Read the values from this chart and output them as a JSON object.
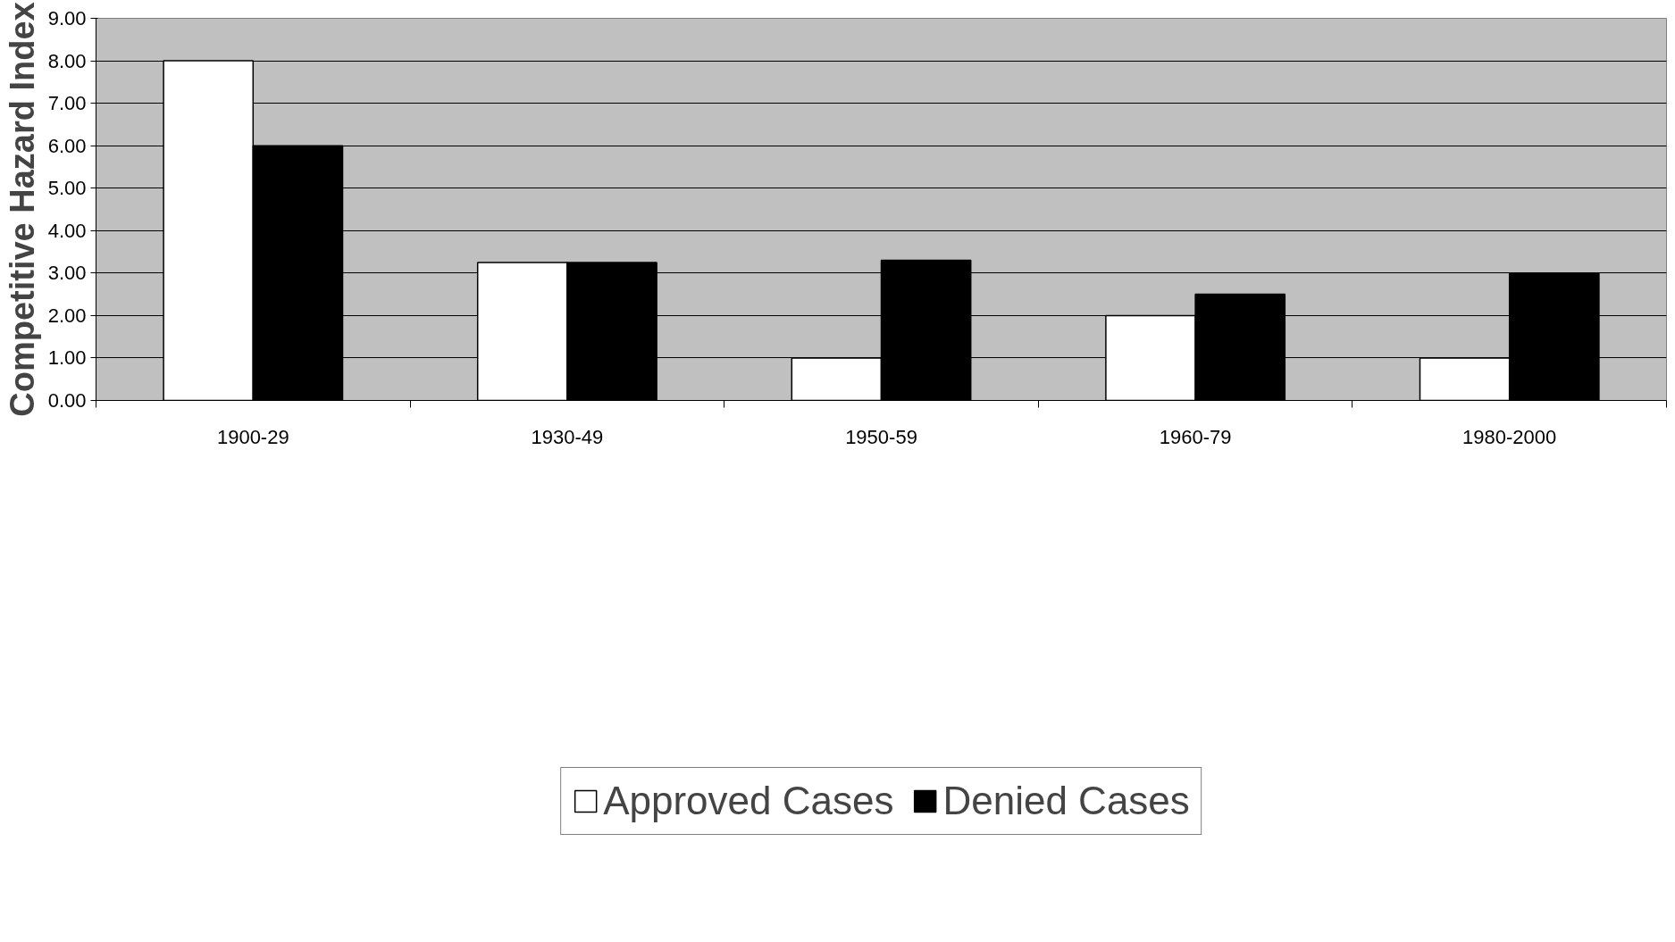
{
  "chart_data": {
    "type": "bar",
    "ylabel": "Competitive Hazard Index",
    "categories": [
      "1900-29",
      "1930-49",
      "1950-59",
      "1960-79",
      "1980-2000"
    ],
    "series": [
      {
        "name": "Approved Cases",
        "color": "#ffffff",
        "values": [
          8.0,
          3.25,
          1.0,
          2.0,
          1.0
        ]
      },
      {
        "name": "Denied Cases",
        "color": "#000000",
        "values": [
          6.0,
          3.25,
          3.3,
          2.5,
          3.0
        ]
      }
    ],
    "ylim": [
      0,
      9
    ],
    "yticks": [
      {
        "value": 0,
        "label": "0.00"
      },
      {
        "value": 1,
        "label": "1.00"
      },
      {
        "value": 2,
        "label": "2.00"
      },
      {
        "value": 3,
        "label": "3.00"
      },
      {
        "value": 4,
        "label": "4.00"
      },
      {
        "value": 5,
        "label": "5.00"
      },
      {
        "value": 6,
        "label": "6.00"
      },
      {
        "value": 7,
        "label": "7.00"
      },
      {
        "value": 8,
        "label": "8.00"
      },
      {
        "value": 9,
        "label": "9.00"
      }
    ],
    "grid": "y",
    "legend": "bottom"
  }
}
